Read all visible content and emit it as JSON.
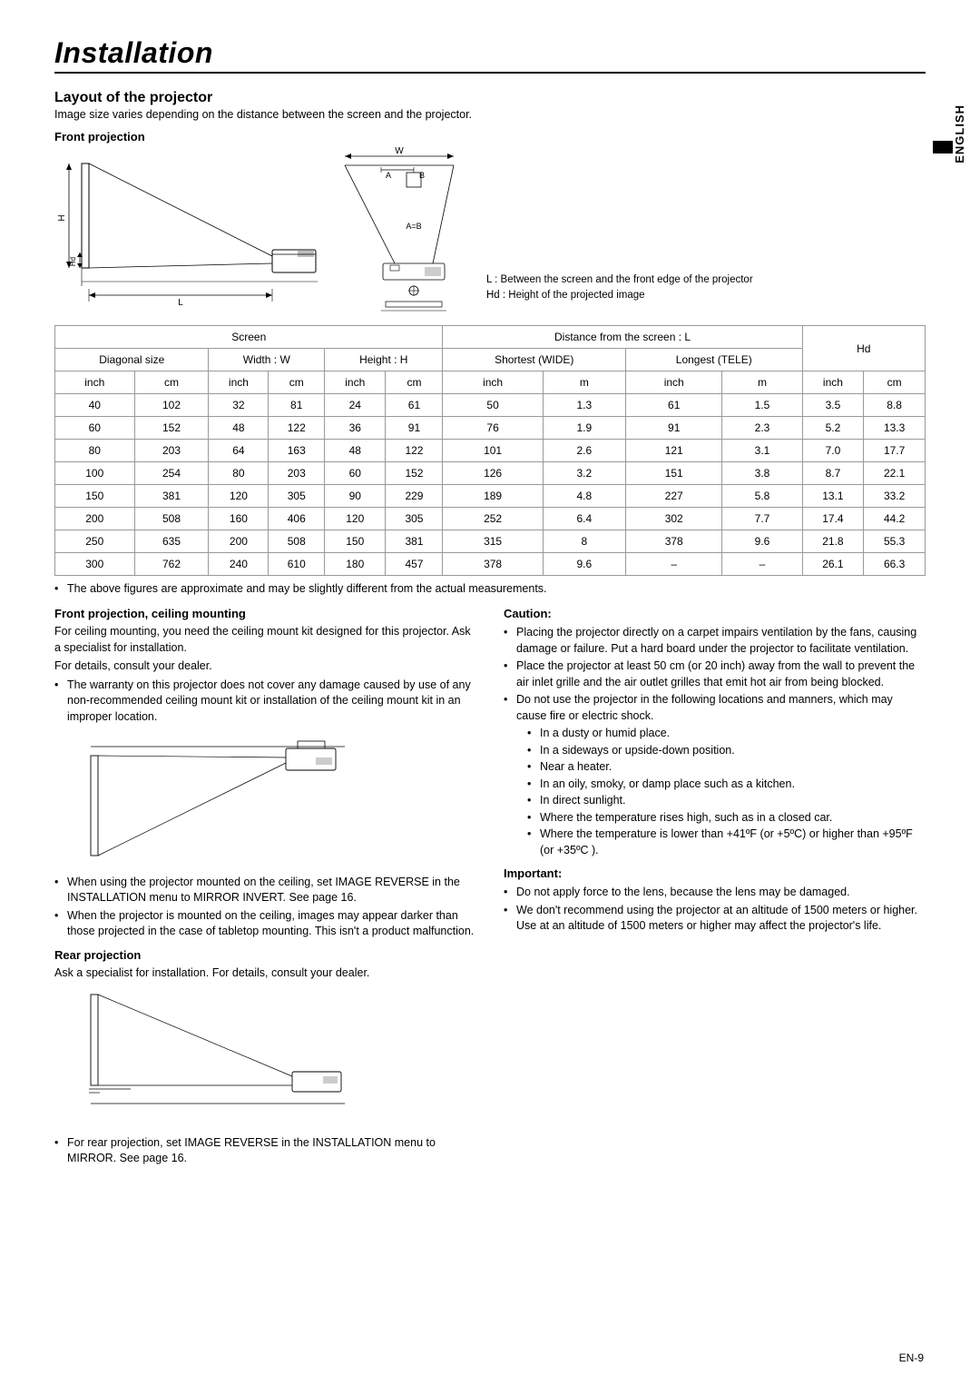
{
  "page": {
    "title": "Installation",
    "language_tab": "ENGLISH",
    "page_number": "EN-9"
  },
  "layout_section": {
    "heading": "Layout of the projector",
    "subtext": "Image size varies depending on the distance between the screen and the projector.",
    "front_proj_heading": "Front projection",
    "diagram_labels": {
      "L": "L",
      "H": "H",
      "Hd": "Hd",
      "W": "W",
      "A": "A",
      "B": "B",
      "AB": "A=B"
    },
    "legend_L": "L : Between the screen and the front edge of the projector",
    "legend_Hd": "Hd : Height of the projected image"
  },
  "table": {
    "header_group_screen": "Screen",
    "header_group_distance": "Distance from the screen : L",
    "header_group_hd": "Hd",
    "header_diag": "Diagonal size",
    "header_width": "Width : W",
    "header_height": "Height : H",
    "header_shortest": "Shortest (WIDE)",
    "header_longest": "Longest (TELE)",
    "unit_inch": "inch",
    "unit_cm": "cm",
    "unit_m": "m",
    "rows": [
      [
        "40",
        "102",
        "32",
        "81",
        "24",
        "61",
        "50",
        "1.3",
        "61",
        "1.5",
        "3.5",
        "8.8"
      ],
      [
        "60",
        "152",
        "48",
        "122",
        "36",
        "91",
        "76",
        "1.9",
        "91",
        "2.3",
        "5.2",
        "13.3"
      ],
      [
        "80",
        "203",
        "64",
        "163",
        "48",
        "122",
        "101",
        "2.6",
        "121",
        "3.1",
        "7.0",
        "17.7"
      ],
      [
        "100",
        "254",
        "80",
        "203",
        "60",
        "152",
        "126",
        "3.2",
        "151",
        "3.8",
        "8.7",
        "22.1"
      ],
      [
        "150",
        "381",
        "120",
        "305",
        "90",
        "229",
        "189",
        "4.8",
        "227",
        "5.8",
        "13.1",
        "33.2"
      ],
      [
        "200",
        "508",
        "160",
        "406",
        "120",
        "305",
        "252",
        "6.4",
        "302",
        "7.7",
        "17.4",
        "44.2"
      ],
      [
        "250",
        "635",
        "200",
        "508",
        "150",
        "381",
        "315",
        "8",
        "378",
        "9.6",
        "21.8",
        "55.3"
      ],
      [
        "300",
        "762",
        "240",
        "610",
        "180",
        "457",
        "378",
        "9.6",
        "–",
        "–",
        "26.1",
        "66.3"
      ]
    ],
    "note": "The above figures are approximate and may be slightly different from the actual measurements."
  },
  "left_col": {
    "ceiling_heading": "Front projection, ceiling mounting",
    "ceiling_p1": "For ceiling mounting, you need the ceiling mount kit designed for this projector. Ask a specialist for installation.",
    "ceiling_p2": "For details, consult your dealer.",
    "ceiling_b1": "The warranty on this projector does not cover any damage caused by use of any non-recommended ceiling mount kit or installation of the ceiling mount kit in an improper location.",
    "ceiling_b2": "When using the projector mounted on the ceiling, set IMAGE REVERSE in the INSTALLATION menu to MIRROR INVERT. See page 16.",
    "ceiling_b3": "When the projector is mounted on the ceiling, images may appear darker than those projected in the case of tabletop mounting. This isn't a product malfunction.",
    "rear_heading": "Rear projection",
    "rear_p1": "Ask a specialist for installation. For details, consult your dealer.",
    "rear_b1": "For rear projection, set IMAGE REVERSE in the INSTALLATION menu to MIRROR. See page 16."
  },
  "right_col": {
    "caution_heading": "Caution:",
    "c1": "Placing the projector directly on a carpet impairs ventilation by the fans, causing damage or failure. Put a hard board under the projector to facilitate ventilation.",
    "c2": "Place the projector at least 50 cm (or 20 inch) away from the wall to prevent the air inlet grille and the air outlet grilles that emit hot air from being blocked.",
    "c3": "Do not use the projector in the following locations and manners, which may cause fire or electric shock.",
    "c3_s1": "In a dusty or humid place.",
    "c3_s2": "In a sideways or upside-down position.",
    "c3_s3": "Near a heater.",
    "c3_s4": "In an oily, smoky, or damp place such as a kitchen.",
    "c3_s5": "In direct sunlight.",
    "c3_s6": "Where the temperature rises high, such as in a closed car.",
    "c3_s7": "Where the temperature is lower than +41ºF (or +5ºC) or higher than +95ºF (or +35ºC ).",
    "important_heading": "Important:",
    "i1": "Do not apply force to the lens, because the lens may be damaged.",
    "i2": "We don't recommend using the projector at an altitude of 1500 meters or higher. Use at an altitude of 1500 meters or higher may affect the projector's life."
  },
  "style": {
    "border_color": "#999999",
    "text_color": "#000000",
    "page_bg": "#ffffff"
  }
}
